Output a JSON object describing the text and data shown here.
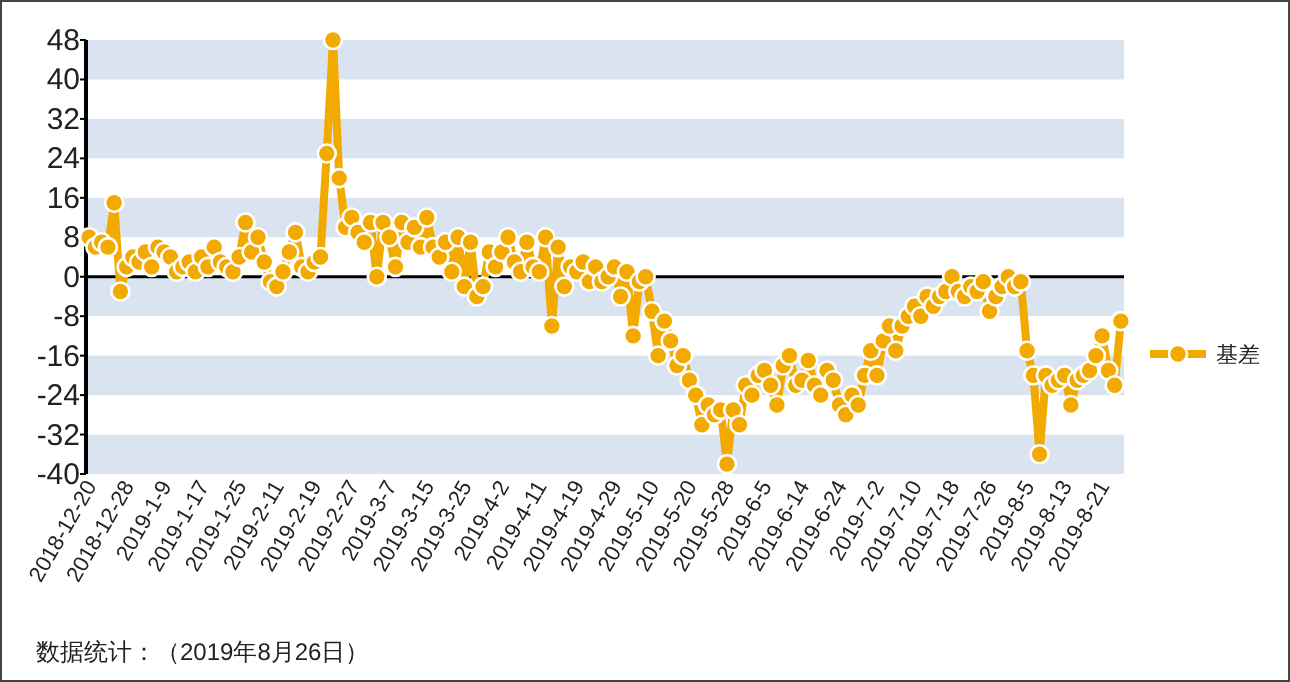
{
  "chart_data": {
    "type": "line",
    "categories": [
      "2018-12-20",
      null,
      null,
      null,
      null,
      null,
      "2018-12-28",
      null,
      null,
      null,
      null,
      null,
      "2019-1-9",
      null,
      null,
      null,
      null,
      null,
      "2019-1-17",
      null,
      null,
      null,
      null,
      null,
      "2019-1-25",
      null,
      null,
      null,
      null,
      null,
      "2019-2-11",
      null,
      null,
      null,
      null,
      null,
      "2019-2-19",
      null,
      null,
      null,
      null,
      null,
      "2019-2-27",
      null,
      null,
      null,
      null,
      null,
      "2019-3-7",
      null,
      null,
      null,
      null,
      null,
      "2019-3-15",
      null,
      null,
      null,
      null,
      null,
      "2019-3-25",
      null,
      null,
      null,
      null,
      null,
      "2019-4-2",
      null,
      null,
      null,
      null,
      null,
      "2019-4-11",
      null,
      null,
      null,
      null,
      null,
      "2019-4-19",
      null,
      null,
      null,
      null,
      null,
      "2019-4-29",
      null,
      null,
      null,
      null,
      null,
      "2019-5-10",
      null,
      null,
      null,
      null,
      null,
      "2019-5-20",
      null,
      null,
      null,
      null,
      null,
      "2019-5-28",
      null,
      null,
      null,
      null,
      null,
      "2019-6-5",
      null,
      null,
      null,
      null,
      null,
      "2019-6-14",
      null,
      null,
      null,
      null,
      null,
      "2019-6-24",
      null,
      null,
      null,
      null,
      null,
      "2019-7-2",
      null,
      null,
      null,
      null,
      null,
      "2019-7-10",
      null,
      null,
      null,
      null,
      null,
      "2019-7-18",
      null,
      null,
      null,
      null,
      null,
      "2019-7-26",
      null,
      null,
      null,
      null,
      null,
      "2019-8-5",
      null,
      null,
      null,
      null,
      null,
      "2019-8-13",
      null,
      null,
      null,
      null,
      null,
      "2019-8-21",
      null,
      null,
      null
    ],
    "series": [
      {
        "name": "基差",
        "color": "#f2a900",
        "values": [
          8,
          6,
          7,
          6,
          15,
          -3,
          2,
          4,
          3,
          5,
          2,
          6,
          5,
          4,
          1,
          2,
          3,
          1,
          4,
          2,
          6,
          3,
          2,
          1,
          4,
          11,
          5,
          8,
          3,
          -1,
          -2,
          1,
          5,
          9,
          2,
          1,
          3,
          4,
          25,
          48,
          20,
          10,
          12,
          9,
          7,
          11,
          0,
          11,
          8,
          2,
          11,
          7,
          10,
          6,
          12,
          6,
          4,
          7,
          1,
          8,
          -2,
          7,
          -4,
          -2,
          5,
          2,
          5,
          8,
          3,
          1,
          7,
          2,
          1,
          8,
          -10,
          6,
          -2,
          2,
          1,
          3,
          -1,
          2,
          -1,
          0,
          2,
          -4,
          1,
          -12,
          -1,
          0,
          -7,
          -16,
          -9,
          -13,
          -18,
          -16,
          -21,
          -24,
          -30,
          -26,
          -28,
          -27,
          -38,
          -27,
          -30,
          -22,
          -24,
          -20,
          -19,
          -22,
          -26,
          -18,
          -16,
          -22,
          -21,
          -17,
          -22,
          -24,
          -19,
          -21,
          -26,
          -28,
          -24,
          -26,
          -20,
          -15,
          -20,
          -13,
          -10,
          -15,
          -10,
          -8,
          -6,
          -8,
          -4,
          -6,
          -4,
          -3,
          0,
          -3,
          -4,
          -2,
          -3,
          -1,
          -7,
          -4,
          -2,
          0,
          -2,
          -1,
          -15,
          -20,
          -36,
          -20,
          -22,
          -21,
          -20,
          -26,
          -21,
          -20,
          -19,
          -16,
          -12,
          -19,
          -22,
          -9
        ]
      }
    ],
    "ylim": [
      -40,
      48
    ],
    "yticks": [
      -40,
      -32,
      -24,
      -16,
      -8,
      0,
      8,
      16,
      24,
      32,
      40,
      48
    ],
    "bands": [
      {
        "axis": "y",
        "from": 40,
        "to": 48,
        "color": "#d9e4f0"
      },
      {
        "axis": "y",
        "from": 24,
        "to": 32,
        "color": "#d9e4f0"
      },
      {
        "axis": "y",
        "from": 8,
        "to": 16,
        "color": "#d9e4f0"
      },
      {
        "axis": "y",
        "from": -8,
        "to": 0,
        "color": "#d9e4f0"
      },
      {
        "axis": "y",
        "from": -24,
        "to": -16,
        "color": "#d9e4f0"
      },
      {
        "axis": "y",
        "from": -40,
        "to": -32,
        "color": "#d9e4f0"
      }
    ],
    "legend": "right",
    "marker": "circle",
    "line_style": "solid",
    "ref_lines": [
      {
        "axis": "y",
        "value": 0,
        "color": "#000000"
      }
    ],
    "annotations": [
      "数据统计：（2019年8月26日）"
    ]
  }
}
